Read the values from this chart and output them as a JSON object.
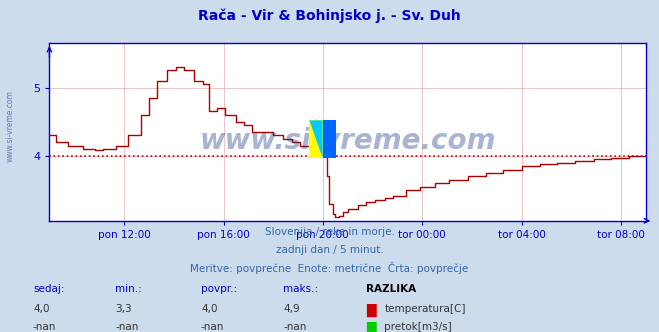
{
  "title": "Rača - Vir & Bohinjsko j. - Sv. Duh",
  "title_color": "#0000cc",
  "bg_color": "#ccdcec",
  "plot_bg_color": "#ffffff",
  "line_color": "#aa0000",
  "dotted_line_color": "#cc0000",
  "dotted_line_y": 4.0,
  "axis_color": "#0000cc",
  "grid_color": "#dd9999",
  "watermark": "www.si-vreme.com",
  "watermark_color": "#1a3a8a",
  "subtitle_lines": [
    "Slovenija / reke in morje.",
    "zadnji dan / 5 minut.",
    "Meritve: povprečne  Enote: metrične  Črta: povprečje"
  ],
  "subtitle_color": "#3366aa",
  "xlabel_ticks": [
    "pon 12:00",
    "pon 16:00",
    "pon 20:00",
    "tor 00:00",
    "tor 04:00",
    "tor 08:00"
  ],
  "xlabel_tick_fracs": [
    0.125,
    0.292,
    0.458,
    0.625,
    0.792,
    0.958
  ],
  "ylim_low": 3.05,
  "ylim_high": 5.65,
  "yticks": [
    4,
    5
  ],
  "table_headers": [
    "sedaj:",
    "min.:",
    "povpr.:",
    "maks.:",
    "RAZLIKA"
  ],
  "table_row1_vals": [
    "4,0",
    "3,3",
    "4,0",
    "4,9"
  ],
  "table_row2_vals": [
    "-nan",
    "-nan",
    "-nan",
    "-nan"
  ],
  "legend1_label": "temperatura[C]",
  "legend2_label": "pretok[m3/s]",
  "legend_color1": "#cc0000",
  "legend_color2": "#00cc00",
  "side_text": "www.si-vreme.com",
  "watermark_alpha": 0.38,
  "watermark_fontsize": 20
}
